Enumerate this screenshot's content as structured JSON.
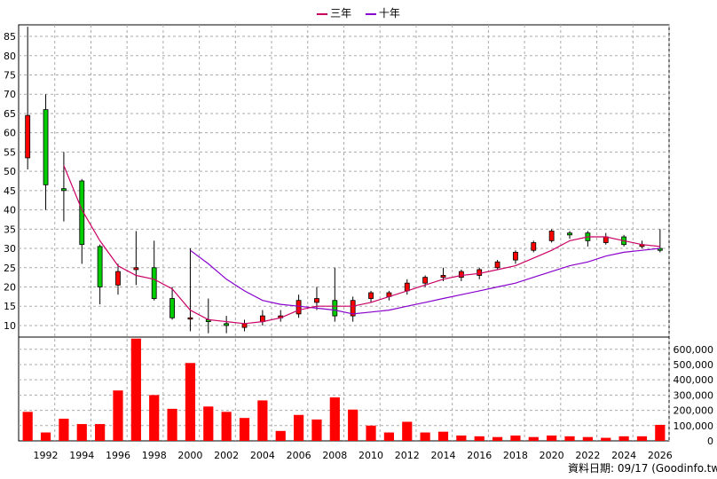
{
  "chart_data": {
    "type": "candlestick",
    "legend": [
      {
        "name": "三年",
        "color": "#cc0066"
      },
      {
        "name": "十年",
        "color": "#8800cc"
      }
    ],
    "price_ylim": [
      7,
      88
    ],
    "price_ticks": [
      10,
      15,
      20,
      25,
      30,
      35,
      40,
      45,
      50,
      55,
      60,
      65,
      70,
      75,
      80,
      85
    ],
    "volume_ylim": [
      0,
      680000
    ],
    "volume_ticks": [
      0,
      100000,
      200000,
      300000,
      400000,
      500000,
      600000
    ],
    "volume_tick_labels": [
      "0",
      "100,000",
      "200,000",
      "300,000",
      "400,000",
      "500,000",
      "600,000"
    ],
    "x_tick_labels": [
      "1992",
      "1994",
      "1996",
      "1998",
      "2000",
      "2002",
      "2004",
      "2006",
      "2008",
      "2010",
      "2012",
      "2014",
      "2016",
      "2018",
      "2020",
      "2022",
      "2024",
      "2026"
    ],
    "years": [
      1991,
      1992,
      1993,
      1994,
      1995,
      1996,
      1997,
      1998,
      1999,
      2000,
      2001,
      2002,
      2003,
      2004,
      2005,
      2006,
      2007,
      2008,
      2009,
      2010,
      2011,
      2012,
      2013,
      2014,
      2015,
      2016,
      2017,
      2018,
      2019,
      2020,
      2021,
      2022,
      2023,
      2024,
      2025,
      2026
    ],
    "candles": [
      {
        "o": 53.5,
        "h": 87.5,
        "l": 50.5,
        "c": 64.5
      },
      {
        "o": 66,
        "h": 70,
        "l": 40,
        "c": 46.5
      },
      {
        "o": 45.5,
        "h": 55,
        "l": 37,
        "c": 45
      },
      {
        "o": 47.5,
        "h": 48,
        "l": 26,
        "c": 31
      },
      {
        "o": 30.5,
        "h": 31,
        "l": 15.5,
        "c": 20
      },
      {
        "o": 20.5,
        "h": 26,
        "l": 18,
        "c": 24
      },
      {
        "o": 24.5,
        "h": 34.5,
        "l": 20.5,
        "c": 25
      },
      {
        "o": 25,
        "h": 32,
        "l": 16.5,
        "c": 17
      },
      {
        "o": 17,
        "h": 20,
        "l": 11.5,
        "c": 12
      },
      {
        "o": 12,
        "h": 30,
        "l": 8.5,
        "c": 12
      },
      {
        "o": 11.5,
        "h": 17,
        "l": 8,
        "c": 11
      },
      {
        "o": 10.5,
        "h": 12.5,
        "l": 8,
        "c": 10
      },
      {
        "o": 9.5,
        "h": 11.5,
        "l": 8.5,
        "c": 10.5
      },
      {
        "o": 11,
        "h": 14,
        "l": 10,
        "c": 12.5
      },
      {
        "o": 12,
        "h": 14,
        "l": 11,
        "c": 12.5
      },
      {
        "o": 13,
        "h": 18,
        "l": 12,
        "c": 16.5
      },
      {
        "o": 16,
        "h": 20,
        "l": 14,
        "c": 17
      },
      {
        "o": 16.5,
        "h": 25,
        "l": 11,
        "c": 12.5
      },
      {
        "o": 12.5,
        "h": 17.5,
        "l": 11,
        "c": 16.5
      },
      {
        "o": 17,
        "h": 19,
        "l": 16,
        "c": 18.5
      },
      {
        "o": 17.5,
        "h": 19,
        "l": 16.5,
        "c": 18.5
      },
      {
        "o": 19,
        "h": 22,
        "l": 18,
        "c": 21
      },
      {
        "o": 21,
        "h": 23,
        "l": 20,
        "c": 22.5
      },
      {
        "o": 22.5,
        "h": 25,
        "l": 21.5,
        "c": 23
      },
      {
        "o": 22.5,
        "h": 24.5,
        "l": 21.5,
        "c": 24
      },
      {
        "o": 23,
        "h": 25,
        "l": 22,
        "c": 24.5
      },
      {
        "o": 25,
        "h": 27,
        "l": 24.5,
        "c": 26.5
      },
      {
        "o": 27,
        "h": 29.5,
        "l": 26,
        "c": 29
      },
      {
        "o": 29.5,
        "h": 32,
        "l": 29,
        "c": 31.5
      },
      {
        "o": 32,
        "h": 35,
        "l": 31.5,
        "c": 34.5
      },
      {
        "o": 34,
        "h": 34.5,
        "l": 32.5,
        "c": 33.5
      },
      {
        "o": 34,
        "h": 34.5,
        "l": 30.5,
        "c": 32
      },
      {
        "o": 31.5,
        "h": 34,
        "l": 31,
        "c": 33
      },
      {
        "o": 33,
        "h": 33.5,
        "l": 30.5,
        "c": 31
      },
      {
        "o": 30.5,
        "h": 32,
        "l": 30,
        "c": 31
      },
      {
        "o": 30,
        "h": 35,
        "l": 29,
        "c": 29.5
      }
    ],
    "ma_3y": [
      null,
      null,
      51.5,
      40,
      32,
      25.5,
      23,
      22,
      19.5,
      14,
      11.5,
      11,
      10.5,
      11,
      12,
      14,
      15,
      15,
      15,
      16,
      17.5,
      19,
      20.5,
      22,
      23,
      23.5,
      24.5,
      25.5,
      27.5,
      29.5,
      32,
      33,
      33,
      32,
      31,
      30.5
    ],
    "ma_10y": [
      null,
      null,
      null,
      null,
      null,
      null,
      null,
      null,
      null,
      29.5,
      26,
      22,
      19,
      16.5,
      15.5,
      15,
      14.5,
      14,
      13,
      13.5,
      14,
      15,
      16,
      17,
      18,
      19,
      20,
      21,
      22.5,
      24,
      25.5,
      26.5,
      28,
      29,
      29.5,
      30
    ],
    "volumes": [
      190000,
      55000,
      145000,
      110000,
      110000,
      330000,
      670000,
      300000,
      210000,
      510000,
      225000,
      190000,
      150000,
      265000,
      65000,
      170000,
      140000,
      285000,
      205000,
      100000,
      55000,
      125000,
      55000,
      60000,
      35000,
      30000,
      25000,
      35000,
      25000,
      35000,
      30000,
      25000,
      20000,
      30000,
      30000,
      105000
    ]
  },
  "footnote": "資料日期: 09/17  (Goodinfo.tw)"
}
